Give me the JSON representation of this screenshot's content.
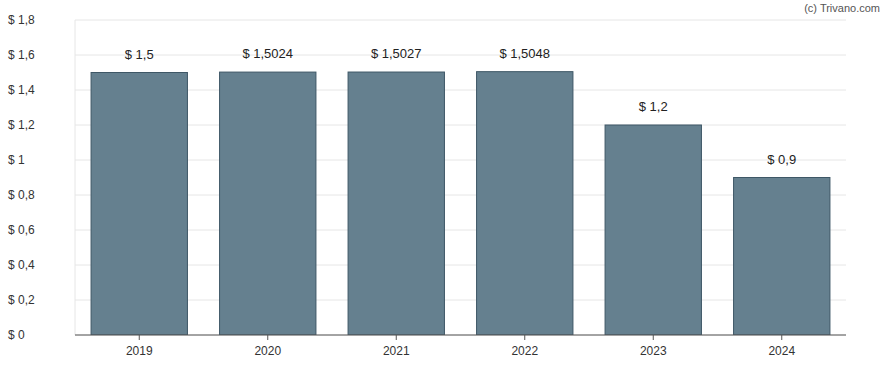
{
  "chart_data": {
    "type": "bar",
    "categories": [
      "2019",
      "2020",
      "2021",
      "2022",
      "2023",
      "2024"
    ],
    "values": [
      1.5,
      1.5024,
      1.5027,
      1.5048,
      1.2,
      0.9
    ],
    "value_labels": [
      "$ 1,5",
      "$ 1,5024",
      "$ 1,5027",
      "$ 1,5048",
      "$ 1,2",
      "$ 0,9"
    ],
    "color": "#65808f",
    "ylim": [
      0,
      1.8
    ],
    "yticks": [
      {
        "value": 0,
        "label": "$ 0"
      },
      {
        "value": 0.2,
        "label": "$ 0,2"
      },
      {
        "value": 0.4,
        "label": "$ 0,4"
      },
      {
        "value": 0.6,
        "label": "$ 0,6"
      },
      {
        "value": 0.8,
        "label": "$ 0,8"
      },
      {
        "value": 1,
        "label": "$ 1"
      },
      {
        "value": 1.2,
        "label": "$ 1,2"
      },
      {
        "value": 1.4,
        "label": "$ 1,4"
      },
      {
        "value": 1.6,
        "label": "$ 1,6"
      },
      {
        "value": 1.8,
        "label": "$ 1,8"
      }
    ],
    "grid": true,
    "data_labels": true,
    "annotations": [
      "(c) Trivano.com"
    ]
  }
}
